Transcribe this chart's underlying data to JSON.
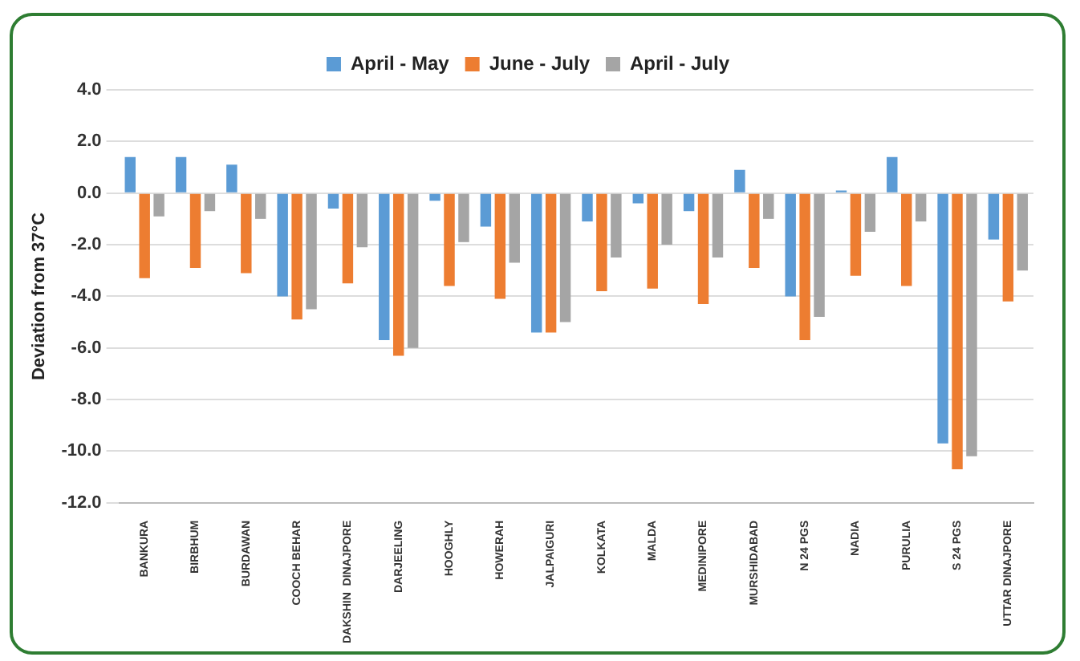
{
  "chart_data": {
    "type": "bar",
    "ylabel": "Deviation from 37°C",
    "categories": [
      "BANKURA",
      "BIRBHUM",
      "BURDAWAN",
      "COOCH BEHAR",
      "DAKSHIN  DINAJPORE",
      "DARJEELING",
      "HOOGHLY",
      "HOWERAH",
      "JALPAIGURI",
      "KOLKATA",
      "MALDA",
      "MEDINIPORE",
      "MURSHIDABAD",
      "N 24 PGS",
      "NADIA",
      "PURULIA",
      "S 24 PGS",
      "UTTAR DINAJPORE"
    ],
    "series": [
      {
        "name": "April - May",
        "color": "#5b9bd5",
        "values": [
          1.4,
          1.4,
          1.1,
          -4.0,
          -0.6,
          -5.7,
          -0.3,
          -1.3,
          -5.4,
          -1.1,
          -0.4,
          -0.7,
          0.9,
          -4.0,
          0.1,
          1.4,
          -9.7,
          -1.8
        ]
      },
      {
        "name": "June - July",
        "color": "#ed7d31",
        "values": [
          -3.3,
          -2.9,
          -3.1,
          -4.9,
          -3.5,
          -6.3,
          -3.6,
          -4.1,
          -5.4,
          -3.8,
          -3.7,
          -4.3,
          -2.9,
          -5.7,
          -3.2,
          -3.6,
          -10.7,
          -4.2
        ]
      },
      {
        "name": "April - July",
        "color": "#a5a5a5",
        "values": [
          -0.9,
          -0.7,
          -1.0,
          -4.5,
          -2.1,
          -6.0,
          -1.9,
          -2.7,
          -5.0,
          -2.5,
          -2.0,
          -2.5,
          -1.0,
          -4.8,
          -1.5,
          -1.1,
          -10.2,
          -3.0
        ]
      }
    ],
    "ylim": [
      -12,
      4
    ],
    "yticks": [
      {
        "value": -12,
        "label": "-12.0"
      },
      {
        "value": -10,
        "label": "-10.0"
      },
      {
        "value": -8,
        "label": "-8.0"
      },
      {
        "value": -6,
        "label": "-6.0"
      },
      {
        "value": -4,
        "label": "-4.0"
      },
      {
        "value": -2,
        "label": "-2.0"
      },
      {
        "value": 0,
        "label": "0.0"
      },
      {
        "value": 2,
        "label": "2.0"
      },
      {
        "value": 4,
        "label": "4.0"
      }
    ],
    "grid": "y",
    "legend": "top"
  }
}
